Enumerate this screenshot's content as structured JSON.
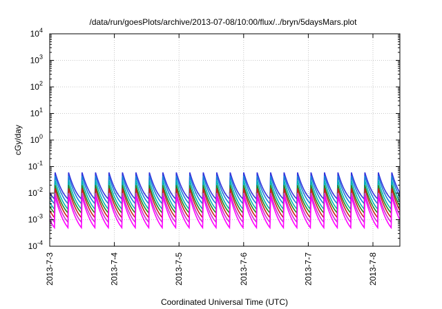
{
  "chart_data": {
    "type": "line",
    "title": "/data/run/goesPlots/archive/2013-07-08/10:00/flux/../bryn/5daysMars.plot",
    "xlabel": "Coordinated Universal Time (UTC)",
    "ylabel": "cGy/day",
    "yscale": "log",
    "ylim": [
      0.0001,
      10000
    ],
    "y_ticks": [
      {
        "value": 0.0001,
        "base": "10",
        "exp": "-4"
      },
      {
        "value": 0.001,
        "base": "10",
        "exp": "-3"
      },
      {
        "value": 0.01,
        "base": "10",
        "exp": "-2"
      },
      {
        "value": 0.1,
        "base": "10",
        "exp": "-1"
      },
      {
        "value": 1,
        "base": "10",
        "exp": "0"
      },
      {
        "value": 10,
        "base": "10",
        "exp": "1"
      },
      {
        "value": 100,
        "base": "10",
        "exp": "2"
      },
      {
        "value": 1000,
        "base": "10",
        "exp": "3"
      },
      {
        "value": 10000,
        "base": "10",
        "exp": "4"
      }
    ],
    "xlim": [
      "2013-07-03",
      "2013-07-08T10:00"
    ],
    "x_ticks": [
      {
        "value": "2013-07-03",
        "label": "2013-7-3"
      },
      {
        "value": "2013-07-04",
        "label": "2013-7-4"
      },
      {
        "value": "2013-07-05",
        "label": "2013-7-5"
      },
      {
        "value": "2013-07-06",
        "label": "2013-7-6"
      },
      {
        "value": "2013-07-07",
        "label": "2013-7-7"
      },
      {
        "value": "2013-07-08",
        "label": "2013-7-8"
      }
    ],
    "grid": true,
    "legend": "none",
    "pattern": {
      "peak_interval_hours": 5,
      "first_peak": "2013-07-03T02:00",
      "cycle_shape": "sharp rise at each peak followed by decay to a minimum just before the next peak"
    },
    "series": [
      {
        "color": "#3333dd",
        "peak": 0.06,
        "trough": 0.006
      },
      {
        "color": "#1a7fd9",
        "peak": 0.045,
        "trough": 0.004
      },
      {
        "color": "#00b3b3",
        "peak": 0.03,
        "trough": 0.0025
      },
      {
        "color": "#228b22",
        "peak": 0.02,
        "trough": 0.0018
      },
      {
        "color": "#cc1a1a",
        "peak": 0.015,
        "trough": 0.0012
      },
      {
        "color": "#cc33cc",
        "peak": 0.01,
        "trough": 0.0008
      },
      {
        "color": "#ff00ff",
        "peak": 0.0075,
        "trough": 0.0005
      }
    ]
  }
}
